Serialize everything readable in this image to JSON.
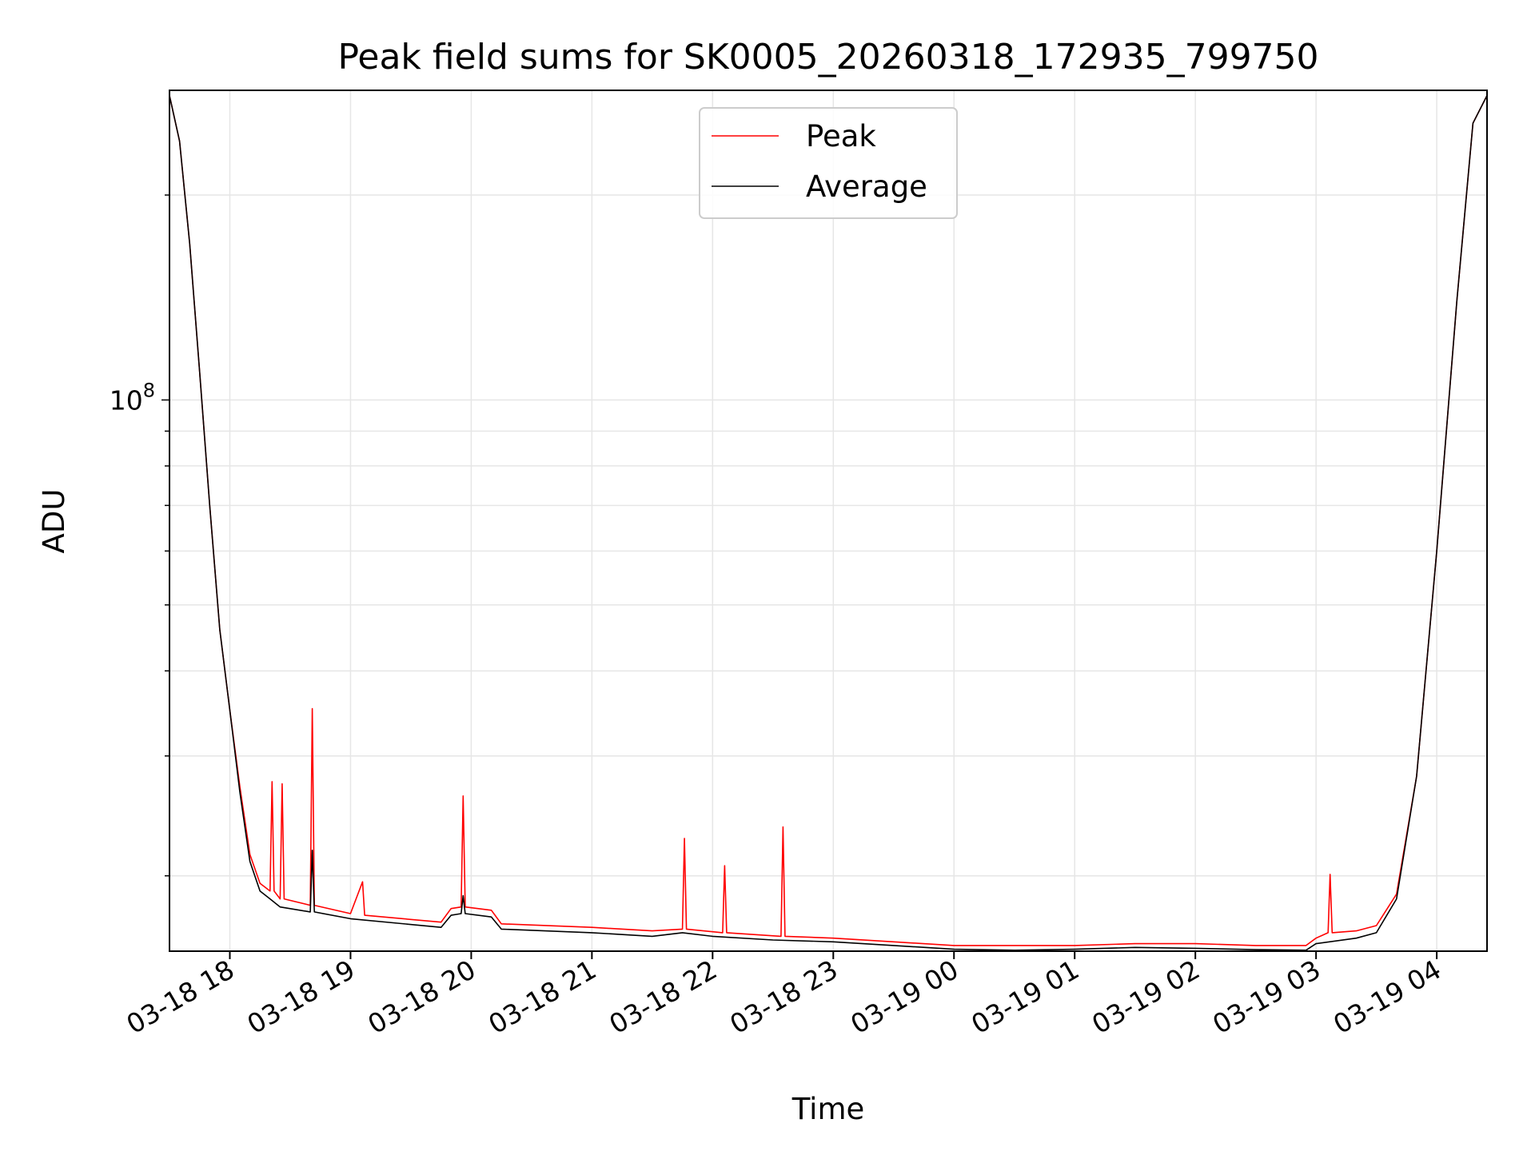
{
  "chart_data": {
    "type": "line",
    "title": "Peak field sums for SK0005_20260318_172935_799750",
    "xlabel": "Time",
    "ylabel": "ADU",
    "yscale": "log",
    "ylim": [
      15500000,
      285000000
    ],
    "xlim": [
      "2026-03-18 17:30",
      "2026-03-19 04:25"
    ],
    "grid": true,
    "legend_position": "upper center",
    "colors": {
      "Peak": "#ff0000",
      "Average": "#000000"
    },
    "x_ticks": [
      {
        "label": "03-18 18",
        "t": "2026-03-18 18:00"
      },
      {
        "label": "03-18 19",
        "t": "2026-03-18 19:00"
      },
      {
        "label": "03-18 20",
        "t": "2026-03-18 20:00"
      },
      {
        "label": "03-18 21",
        "t": "2026-03-18 21:00"
      },
      {
        "label": "03-18 22",
        "t": "2026-03-18 22:00"
      },
      {
        "label": "03-18 23",
        "t": "2026-03-18 23:00"
      },
      {
        "label": "03-19 00",
        "t": "2026-03-19 00:00"
      },
      {
        "label": "03-19 01",
        "t": "2026-03-19 01:00"
      },
      {
        "label": "03-19 02",
        "t": "2026-03-19 02:00"
      },
      {
        "label": "03-19 03",
        "t": "2026-03-19 03:00"
      },
      {
        "label": "03-19 04",
        "t": "2026-03-19 04:00"
      }
    ],
    "y_major_ticks": [
      {
        "base": "10",
        "exp": "8",
        "value": 100000000
      }
    ],
    "series": [
      {
        "name": "Peak",
        "points": [
          [
            "2026-03-18 17:30",
            280000000
          ],
          [
            "2026-03-18 17:35",
            240000000
          ],
          [
            "2026-03-18 17:40",
            170000000
          ],
          [
            "2026-03-18 17:45",
            110000000
          ],
          [
            "2026-03-18 17:50",
            70000000
          ],
          [
            "2026-03-18 17:55",
            46000000
          ],
          [
            "2026-03-18 18:00",
            35000000
          ],
          [
            "2026-03-18 18:05",
            27000000
          ],
          [
            "2026-03-18 18:10",
            21500000
          ],
          [
            "2026-03-18 18:15",
            19500000
          ],
          [
            "2026-03-18 18:20",
            19000000
          ],
          [
            "2026-03-18 18:21",
            27500000
          ],
          [
            "2026-03-18 18:22",
            19000000
          ],
          [
            "2026-03-18 18:25",
            18500000
          ],
          [
            "2026-03-18 18:26",
            27300000
          ],
          [
            "2026-03-18 18:27",
            18500000
          ],
          [
            "2026-03-18 18:40",
            18100000
          ],
          [
            "2026-03-18 18:41",
            35200000
          ],
          [
            "2026-03-18 18:42",
            18100000
          ],
          [
            "2026-03-18 19:00",
            17600000
          ],
          [
            "2026-03-18 19:06",
            19600000
          ],
          [
            "2026-03-18 19:07",
            17500000
          ],
          [
            "2026-03-18 19:45",
            17100000
          ],
          [
            "2026-03-18 19:50",
            17900000
          ],
          [
            "2026-03-18 19:55",
            18000000
          ],
          [
            "2026-03-18 19:56",
            26200000
          ],
          [
            "2026-03-18 19:57",
            18000000
          ],
          [
            "2026-03-18 20:10",
            17800000
          ],
          [
            "2026-03-18 20:15",
            17000000
          ],
          [
            "2026-03-18 21:00",
            16800000
          ],
          [
            "2026-03-18 21:30",
            16600000
          ],
          [
            "2026-03-18 21:45",
            16700000
          ],
          [
            "2026-03-18 21:46",
            22700000
          ],
          [
            "2026-03-18 21:47",
            16700000
          ],
          [
            "2026-03-18 22:05",
            16500000
          ],
          [
            "2026-03-18 22:06",
            20700000
          ],
          [
            "2026-03-18 22:07",
            16500000
          ],
          [
            "2026-03-18 22:34",
            16300000
          ],
          [
            "2026-03-18 22:35",
            23600000
          ],
          [
            "2026-03-18 22:36",
            16300000
          ],
          [
            "2026-03-18 23:00",
            16200000
          ],
          [
            "2026-03-18 23:30",
            16000000
          ],
          [
            "2026-03-19 00:00",
            15800000
          ],
          [
            "2026-03-19 00:30",
            15800000
          ],
          [
            "2026-03-19 01:00",
            15800000
          ],
          [
            "2026-03-19 01:30",
            15900000
          ],
          [
            "2026-03-19 02:00",
            15900000
          ],
          [
            "2026-03-19 02:30",
            15800000
          ],
          [
            "2026-03-19 02:55",
            15800000
          ],
          [
            "2026-03-19 03:00",
            16200000
          ],
          [
            "2026-03-19 03:06",
            16500000
          ],
          [
            "2026-03-19 03:07",
            20100000
          ],
          [
            "2026-03-19 03:08",
            16500000
          ],
          [
            "2026-03-19 03:20",
            16600000
          ],
          [
            "2026-03-19 03:30",
            16900000
          ],
          [
            "2026-03-19 03:40",
            18800000
          ],
          [
            "2026-03-19 03:50",
            28000000
          ],
          [
            "2026-03-19 04:00",
            60000000
          ],
          [
            "2026-03-19 04:10",
            140000000
          ],
          [
            "2026-03-19 04:18",
            255000000
          ],
          [
            "2026-03-19 04:25",
            280000000
          ]
        ]
      },
      {
        "name": "Average",
        "points": [
          [
            "2026-03-18 17:30",
            280000000
          ],
          [
            "2026-03-18 17:35",
            240000000
          ],
          [
            "2026-03-18 17:40",
            170000000
          ],
          [
            "2026-03-18 17:45",
            110000000
          ],
          [
            "2026-03-18 17:50",
            70000000
          ],
          [
            "2026-03-18 17:55",
            46000000
          ],
          [
            "2026-03-18 18:00",
            35000000
          ],
          [
            "2026-03-18 18:05",
            26500000
          ],
          [
            "2026-03-18 18:10",
            21000000
          ],
          [
            "2026-03-18 18:15",
            19000000
          ],
          [
            "2026-03-18 18:20",
            18500000
          ],
          [
            "2026-03-18 18:25",
            18000000
          ],
          [
            "2026-03-18 18:40",
            17700000
          ],
          [
            "2026-03-18 18:41",
            21800000
          ],
          [
            "2026-03-18 18:42",
            17700000
          ],
          [
            "2026-03-18 19:00",
            17300000
          ],
          [
            "2026-03-18 19:45",
            16800000
          ],
          [
            "2026-03-18 19:50",
            17500000
          ],
          [
            "2026-03-18 19:55",
            17600000
          ],
          [
            "2026-03-18 19:56",
            18700000
          ],
          [
            "2026-03-18 19:57",
            17600000
          ],
          [
            "2026-03-18 20:10",
            17400000
          ],
          [
            "2026-03-18 20:15",
            16700000
          ],
          [
            "2026-03-18 21:00",
            16500000
          ],
          [
            "2026-03-18 21:30",
            16300000
          ],
          [
            "2026-03-18 21:45",
            16500000
          ],
          [
            "2026-03-18 22:00",
            16300000
          ],
          [
            "2026-03-18 22:30",
            16100000
          ],
          [
            "2026-03-18 23:00",
            16000000
          ],
          [
            "2026-03-18 23:30",
            15800000
          ],
          [
            "2026-03-19 00:00",
            15600000
          ],
          [
            "2026-03-19 00:30",
            15550000
          ],
          [
            "2026-03-19 01:00",
            15600000
          ],
          [
            "2026-03-19 01:30",
            15700000
          ],
          [
            "2026-03-19 02:00",
            15650000
          ],
          [
            "2026-03-19 02:30",
            15580000
          ],
          [
            "2026-03-19 02:55",
            15550000
          ],
          [
            "2026-03-19 03:00",
            15900000
          ],
          [
            "2026-03-19 03:20",
            16200000
          ],
          [
            "2026-03-19 03:30",
            16500000
          ],
          [
            "2026-03-19 03:40",
            18500000
          ],
          [
            "2026-03-19 03:50",
            28000000
          ],
          [
            "2026-03-19 04:00",
            60000000
          ],
          [
            "2026-03-19 04:10",
            140000000
          ],
          [
            "2026-03-19 04:18",
            255000000
          ],
          [
            "2026-03-19 04:25",
            280000000
          ]
        ]
      }
    ]
  }
}
